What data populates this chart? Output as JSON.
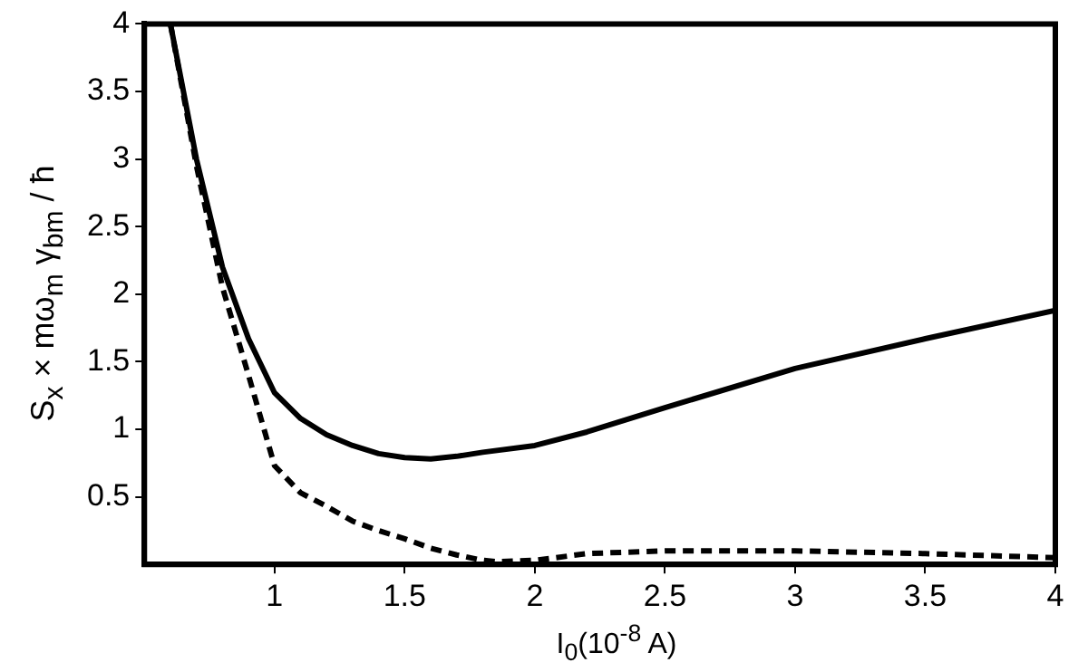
{
  "chart_data": {
    "type": "line",
    "xlabel": "I$_{0}$(10$^{-8}$ A)",
    "ylabel": "S$_{x}$ × mω$_{m}$ γ$_{bm}$ / ħ",
    "xlim": [
      0.5,
      4
    ],
    "ylim": [
      0,
      4
    ],
    "xticks": [
      1,
      1.5,
      2,
      2.5,
      3,
      3.5,
      4
    ],
    "yticks": [
      0.5,
      1,
      1.5,
      2,
      2.5,
      3,
      3.5,
      4
    ],
    "grid": false,
    "legend": false,
    "marker": "none",
    "series": [
      {
        "color": "#000000",
        "line_style": "solid",
        "x": [
          0.6,
          0.7,
          0.8,
          0.9,
          1,
          1.1,
          1.2,
          1.3,
          1.4,
          1.5,
          1.6,
          1.7,
          1.8,
          2,
          2.2,
          2.5,
          3,
          3.5,
          4
        ],
        "values": [
          4,
          3.0,
          2.2,
          1.67,
          1.27,
          1.08,
          0.96,
          0.88,
          0.82,
          0.79,
          0.78,
          0.8,
          0.83,
          0.88,
          0.98,
          1.16,
          1.45,
          1.67,
          1.88
        ]
      },
      {
        "color": "#000000",
        "line_style": "dashed",
        "x": [
          0.6,
          0.7,
          0.8,
          0.9,
          1,
          1.1,
          1.2,
          1.3,
          1.4,
          1.5,
          1.6,
          1.7,
          1.8,
          1.85,
          2,
          2.2,
          2.5,
          3,
          3.5,
          4
        ],
        "values": [
          4,
          2.95,
          2.05,
          1.4,
          0.73,
          0.53,
          0.43,
          0.32,
          0.25,
          0.19,
          0.12,
          0.07,
          0.03,
          0.02,
          0.03,
          0.08,
          0.1,
          0.1,
          0.08,
          0.05
        ]
      }
    ]
  }
}
